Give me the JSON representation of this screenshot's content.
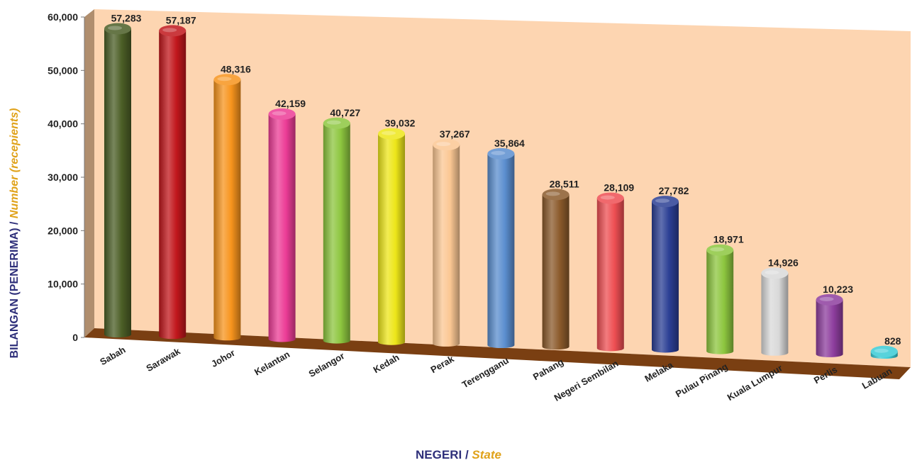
{
  "chart_data": {
    "type": "bar",
    "categories": [
      "Sabah",
      "Sarawak",
      "Johor",
      "Kelantan",
      "Selangor",
      "Kedah",
      "Perak",
      "Terengganu",
      "Pahang",
      "Negeri Sembilan",
      "Melaka",
      "Pulau Pinang",
      "Kuala Lumpur",
      "Perlis",
      "Labuan"
    ],
    "values": [
      57283,
      57187,
      48316,
      42159,
      40727,
      39032,
      37267,
      35864,
      28511,
      28109,
      27782,
      18971,
      14926,
      10223,
      828
    ],
    "value_labels": [
      "57,283",
      "57,187",
      "48,316",
      "42,159",
      "40,727",
      "39,032",
      "37,267",
      "35,864",
      "28,511",
      "28,109",
      "27,782",
      "18,971",
      "14,926",
      "10,223",
      "828"
    ],
    "colors": [
      "#4b5e26",
      "#c1171c",
      "#f7941d",
      "#ec3c96",
      "#8dc63f",
      "#ede619",
      "#fbc793",
      "#5b8ecf",
      "#8b5a2b",
      "#ee4f53",
      "#2b3f94",
      "#8dc63f",
      "#d9d9d9",
      "#8e3e9e",
      "#3bcbd6"
    ],
    "yticks": [
      "0",
      "10,000",
      "20,000",
      "30,000",
      "40,000",
      "50,000",
      "60,000"
    ],
    "ylim": [
      0,
      60000
    ],
    "xlabel": {
      "main": "NEGERI",
      "sep": " / ",
      "alt": "State"
    },
    "ylabel": {
      "main": "BILANGAN (PENERIMA) / ",
      "alt": "Number (recepients)"
    },
    "grid": false,
    "legend": "none",
    "style": {
      "back_wall": "#fdd5b1",
      "floor": "#7a3f12",
      "side_wall": "#b08e6e"
    }
  }
}
